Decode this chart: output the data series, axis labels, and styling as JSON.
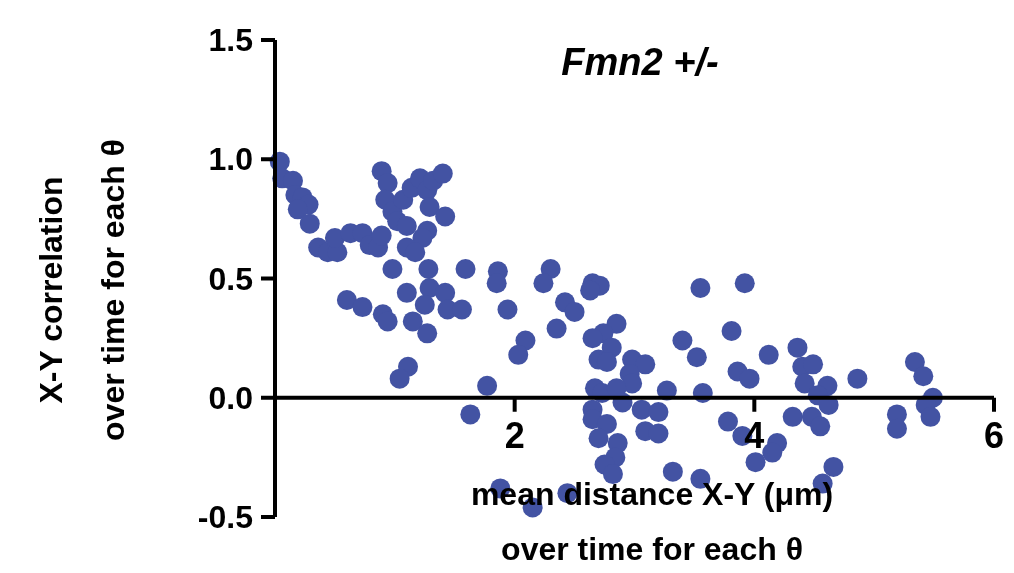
{
  "chart_data": {
    "type": "scatter",
    "title": "Fmn2 +/-",
    "xlabel": "mean distance X-Y (μm)\nover time for each θ",
    "ylabel": "X-Y correlation\nover time for each θ",
    "xlim": [
      0,
      6
    ],
    "xticks": [
      2,
      4,
      6
    ],
    "ylim": [
      -0.5,
      1.5
    ],
    "yticks": [
      {
        "value": -0.5,
        "label": "-0.5"
      },
      {
        "value": 0,
        "label": "0.0"
      },
      {
        "value": 0.5,
        "label": "0.5"
      },
      {
        "value": 1,
        "label": "1.0"
      },
      {
        "value": 1.5,
        "label": "1.5"
      }
    ],
    "grid": false,
    "marker": "circle",
    "series": [
      {
        "color": "#4353a3",
        "x": [
          0.04,
          0.06,
          0.15,
          0.17,
          0.23,
          0.28,
          0.19,
          0.29,
          0.36,
          0.44,
          0.52,
          0.5,
          0.63,
          0.73,
          0.79,
          0.86,
          0.89,
          0.89,
          0.94,
          0.92,
          0.98,
          1.02,
          1.1,
          1.07,
          1.14,
          1.21,
          1.27,
          1.32,
          1.4,
          1.29,
          1.42,
          1.27,
          1.23,
          1.1,
          1.17,
          0.98,
          1.28,
          1.59,
          1.86,
          1.85,
          1.29,
          1.42,
          1.1,
          1.25,
          1.44,
          1.56,
          1.94,
          0.6,
          0.73,
          0.9,
          0.94,
          1.15,
          1.27,
          1.11,
          1.04,
          1.77,
          1.63,
          2.3,
          2.24,
          2.65,
          2.71,
          2.63,
          2.42,
          2.5,
          2.35,
          2.09,
          2.03,
          3.55,
          3.92,
          2.85,
          2.74,
          2.65,
          2.81,
          2.7,
          2.77,
          2.98,
          3.09,
          2.96,
          2.98,
          3.4,
          3.52,
          3.81,
          3.86,
          2.67,
          2.73,
          2.85,
          2.9,
          3.27,
          3.57,
          3.06,
          3.2,
          2.65,
          2.65,
          2.77,
          2.7,
          3.09,
          3.2,
          2.86,
          2.84,
          2.75,
          2.82,
          3.32,
          3.55,
          3.78,
          3.9,
          2.15,
          2.44,
          1.88,
          4.12,
          4.36,
          4.4,
          4.49,
          3.96,
          4.42,
          4.61,
          4.53,
          4.62,
          4.86,
          4.32,
          4.48,
          4.55,
          5.34,
          5.41,
          5.49,
          5.43,
          5.47,
          5.19,
          5.19,
          4.19,
          4.15,
          4.01,
          4.66,
          4.57
        ],
        "values": [
          0.99,
          0.92,
          0.91,
          0.85,
          0.84,
          0.81,
          0.79,
          0.73,
          0.63,
          0.61,
          0.61,
          0.67,
          0.69,
          0.69,
          0.64,
          0.63,
          0.68,
          0.95,
          0.9,
          0.83,
          0.78,
          0.74,
          0.72,
          0.83,
          0.88,
          0.92,
          0.87,
          0.91,
          0.94,
          0.8,
          0.76,
          0.7,
          0.67,
          0.63,
          0.61,
          0.54,
          0.54,
          0.54,
          0.53,
          0.48,
          0.46,
          0.44,
          0.44,
          0.39,
          0.37,
          0.37,
          0.37,
          0.41,
          0.38,
          0.35,
          0.32,
          0.32,
          0.27,
          0.13,
          0.08,
          0.05,
          -0.07,
          0.54,
          0.48,
          0.48,
          0.47,
          0.45,
          0.4,
          0.36,
          0.29,
          0.24,
          0.18,
          0.46,
          0.48,
          0.31,
          0.27,
          0.25,
          0.21,
          0.16,
          0.15,
          0.16,
          0.14,
          0.1,
          0.06,
          0.24,
          0.17,
          0.28,
          0.11,
          0.04,
          0.02,
          0.04,
          -0.02,
          0.03,
          0.02,
          -0.05,
          -0.06,
          -0.05,
          -0.09,
          -0.11,
          -0.17,
          -0.14,
          -0.15,
          -0.19,
          -0.25,
          -0.28,
          -0.32,
          -0.31,
          -0.34,
          -0.1,
          -0.16,
          -0.46,
          -0.4,
          -0.38,
          0.18,
          0.21,
          0.13,
          0.14,
          0.08,
          0.06,
          0.05,
          0.01,
          -0.03,
          0.08,
          -0.08,
          -0.08,
          -0.12,
          0.15,
          0.09,
          0.0,
          -0.03,
          -0.08,
          -0.07,
          -0.13,
          -0.19,
          -0.23,
          -0.27,
          -0.29,
          -0.36
        ]
      }
    ]
  }
}
